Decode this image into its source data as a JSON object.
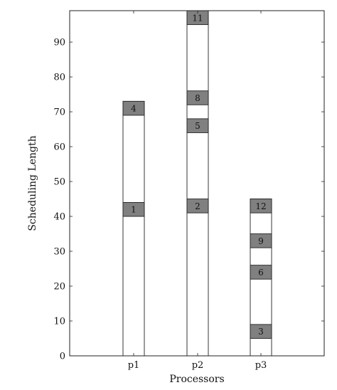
{
  "chart_data": {
    "type": "bar",
    "subtype": "gantt-stacked",
    "title": "",
    "xlabel": "Processors",
    "ylabel": "Scheduling Length",
    "categories": [
      "p1",
      "p2",
      "p3"
    ],
    "ylim": [
      0,
      99
    ],
    "yticks": [
      0,
      10,
      20,
      30,
      40,
      50,
      60,
      70,
      80,
      90
    ],
    "grid": false,
    "idle_color": "#ffffff",
    "task_color": "#808080",
    "outline_color": "#222222",
    "tasks": [
      {
        "processor": "p1",
        "label": "1",
        "start": 40,
        "end": 44
      },
      {
        "processor": "p1",
        "label": "4",
        "start": 69,
        "end": 73
      },
      {
        "processor": "p2",
        "label": "2",
        "start": 41,
        "end": 45
      },
      {
        "processor": "p2",
        "label": "5",
        "start": 64,
        "end": 68
      },
      {
        "processor": "p2",
        "label": "8",
        "start": 72,
        "end": 76
      },
      {
        "processor": "p2",
        "label": "11",
        "start": 95,
        "end": 99
      },
      {
        "processor": "p3",
        "label": "3",
        "start": 5,
        "end": 9
      },
      {
        "processor": "p3",
        "label": "6",
        "start": 22,
        "end": 26
      },
      {
        "processor": "p3",
        "label": "9",
        "start": 31,
        "end": 35
      },
      {
        "processor": "p3",
        "label": "12",
        "start": 41,
        "end": 45
      }
    ],
    "processor_end": {
      "p1": 73,
      "p2": 99,
      "p3": 45
    }
  }
}
